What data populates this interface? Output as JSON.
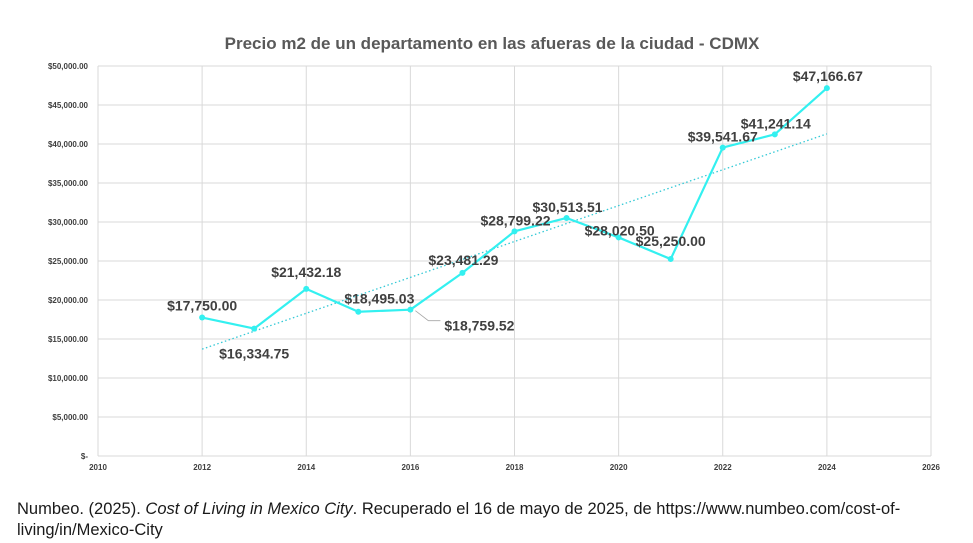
{
  "chart_data": {
    "type": "line",
    "title": "Precio m2 de un departamento en las afueras de la ciudad - CDMX",
    "xlabel": "",
    "ylabel": "",
    "xlim": [
      2010,
      2026
    ],
    "ylim": [
      0,
      50000
    ],
    "grid": true,
    "x_ticks": [
      "2010",
      "2012",
      "2014",
      "2016",
      "2018",
      "2020",
      "2022",
      "2024",
      "2026"
    ],
    "y_ticks": [
      "$-",
      "$5,000.00",
      "$10,000.00",
      "$15,000.00",
      "$20,000.00",
      "$25,000.00",
      "$30,000.00",
      "$35,000.00",
      "$40,000.00",
      "$45,000.00",
      "$50,000.00"
    ],
    "series": [
      {
        "name": "Precio m2",
        "color": "#33f0f0",
        "x": [
          2012,
          2013,
          2014,
          2015,
          2016,
          2017,
          2018,
          2019,
          2020,
          2021,
          2022,
          2023,
          2024
        ],
        "values": [
          17750.0,
          16334.75,
          21432.18,
          18495.03,
          18759.52,
          23481.29,
          28799.22,
          30513.51,
          28020.5,
          25250.0,
          39541.67,
          41241.14,
          47166.67
        ],
        "labels": [
          "$17,750.00",
          "$16,334.75",
          "$21,432.18",
          "$18,495.03",
          "$18,759.52",
          "$23,481.29",
          "$28,799.22",
          "$30,513.51",
          "$28,020.50",
          "$25,250.00",
          "$39,541.67",
          "$41,241.14",
          "$47,166.67"
        ]
      }
    ],
    "trendline": {
      "type": "linear",
      "style": "dotted",
      "color": "#33c9d6",
      "x": [
        2012,
        2024
      ],
      "values": [
        13700,
        41300
      ]
    }
  },
  "citation": {
    "author_year": "Numbeo. (2025). ",
    "title_italic": "Cost of Living in Mexico City",
    "rest": ". Recuperado el 16 de mayo de 2025, de https://www.numbeo.com/cost-of-living/in/Mexico-City"
  }
}
